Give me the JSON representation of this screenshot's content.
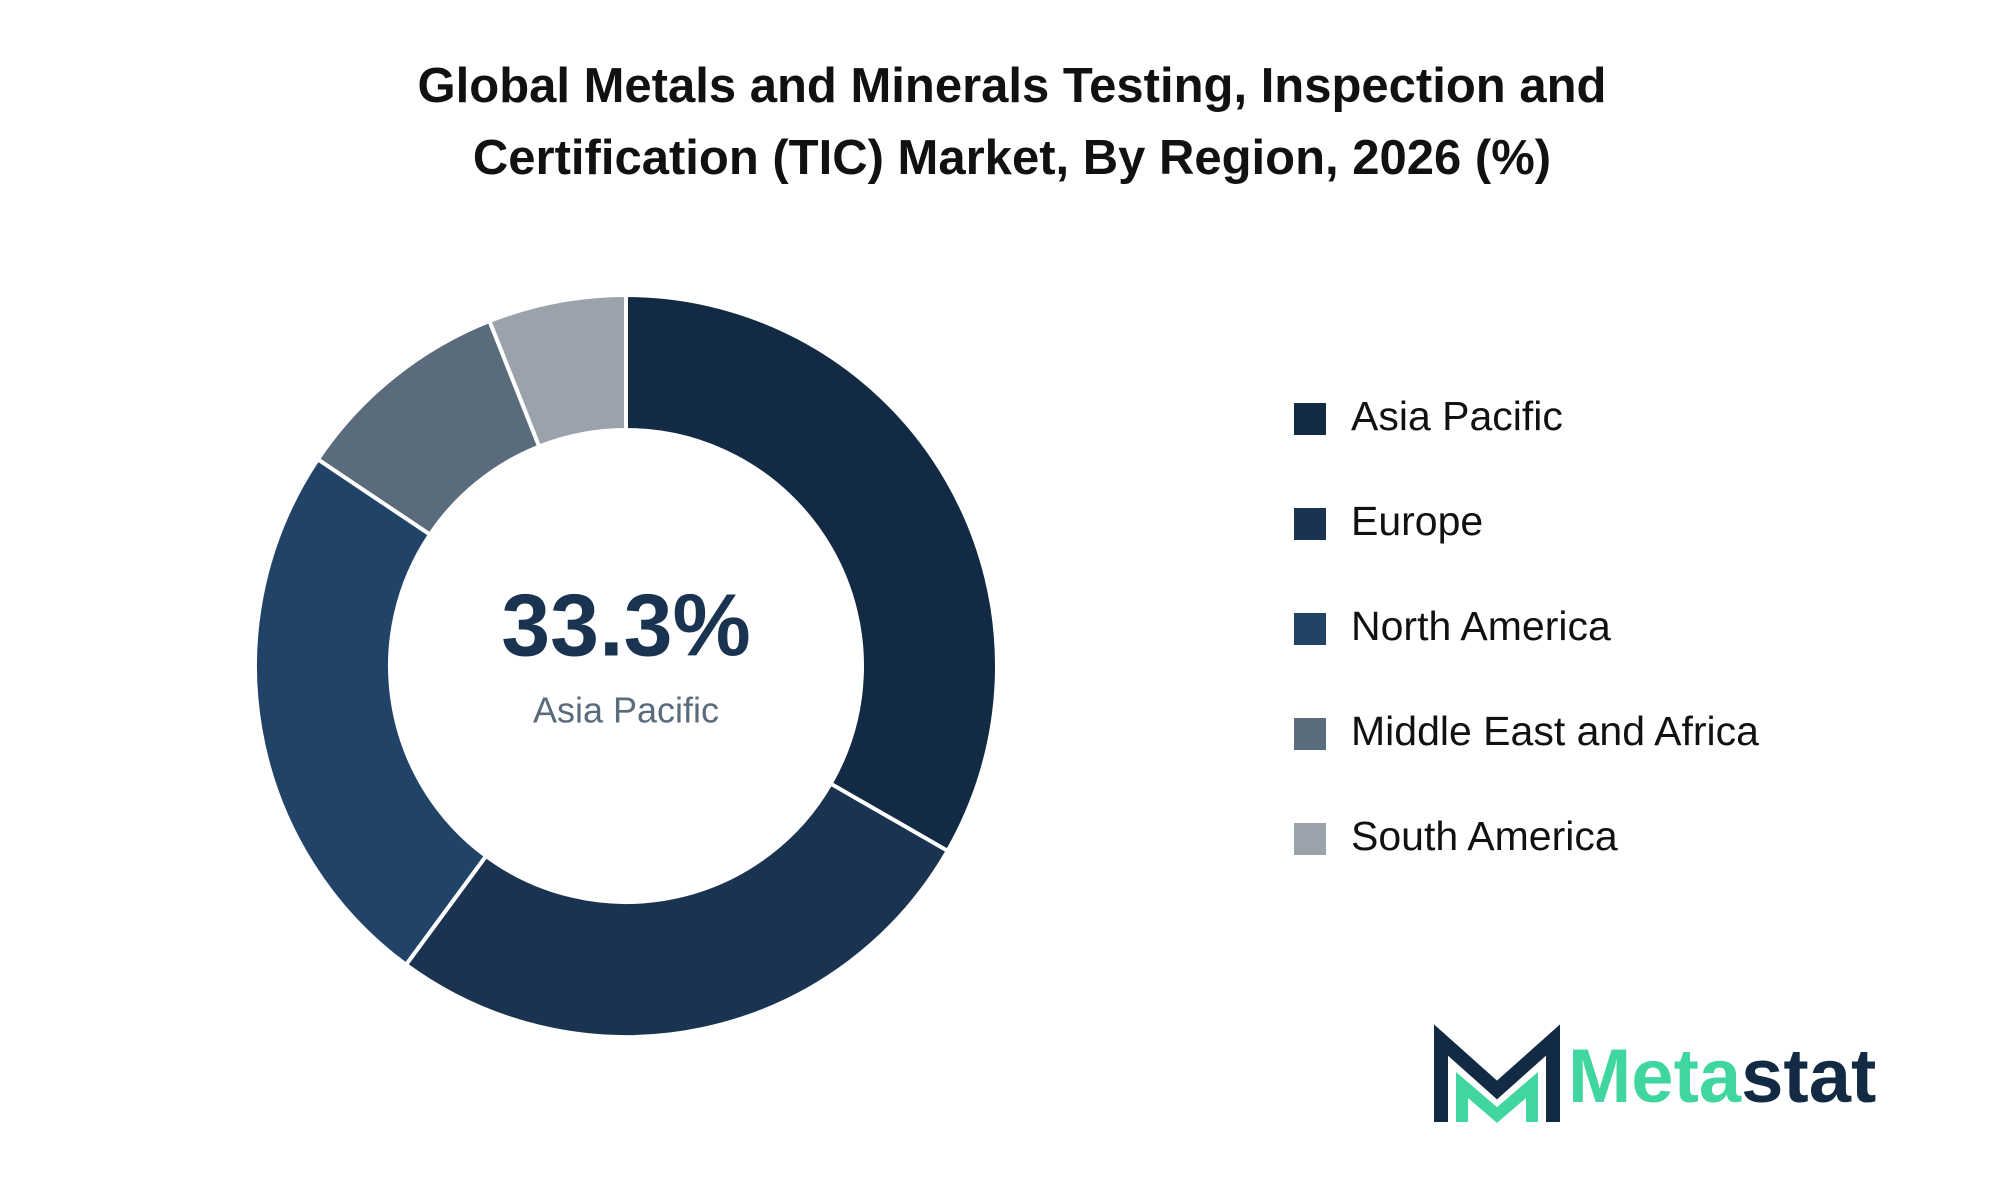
{
  "chart_data": {
    "type": "donut",
    "title": "Global Metals and Minerals Testing, Inspection and Certification (TIC) Market, By Region, 2026 (%)",
    "categories": [
      "Asia Pacific",
      "Europe",
      "North America",
      "Middle East and Africa",
      "South America"
    ],
    "values": [
      33.3,
      26.8,
      24.3,
      9.6,
      6.0
    ],
    "value_labels": [
      "33.3%",
      null,
      null,
      null,
      null
    ],
    "colors": [
      "#132a44",
      "#1a3350",
      "#224368",
      "#5a6b7c",
      "#9aa2ac"
    ],
    "legend": "right"
  },
  "logo": {
    "accent": "Meta",
    "rest": "stat"
  }
}
